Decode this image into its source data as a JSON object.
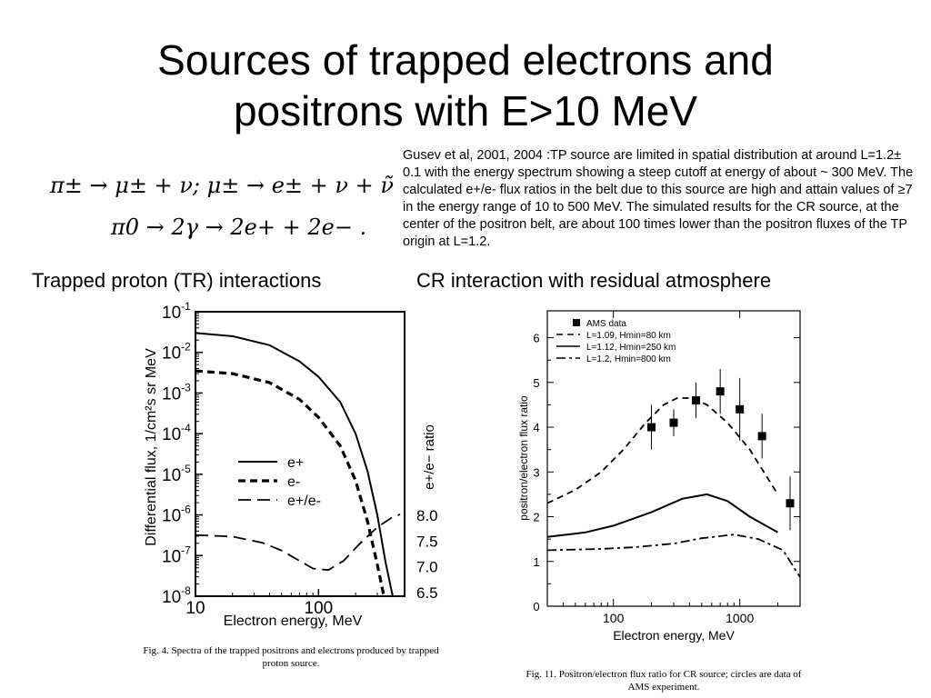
{
  "slide": {
    "title_line1": "Sources of trapped electrons and",
    "title_line2": "positrons with  E>10 MeV",
    "equation_1": "π± → μ± + ν;  μ± → e± + ν + ν̃",
    "equation_2": "π0 → 2γ → 2e+ + 2e− .",
    "description": "Gusev et al, 2001, 2004 :TP source are limited in spatial distribution at around L=1.2± 0.1 with the energy spectrum showing a steep cutoff at energy of about ~ 300 MeV. The calculated e+/e- flux ratios in the belt due to this source are high and attain values of ≥7 in the energy range of 10 to 500 MeV. The simulated results for the CR source, at the center of the positron belt, are about 100 times lower than the positron fluxes of the TP origin at L=1.2.",
    "left_heading": "Trapped proton  (TR) interactions",
    "right_heading": "CR interaction with residual  atmosphere"
  },
  "chart_data": [
    {
      "type": "line",
      "ylabel": "Differential flux, 1/cm²s sr MeV",
      "xlabel": "Electron energy, MeV",
      "y2label": "e+/e− ratio",
      "xscale": "log",
      "yscale": "log",
      "xlim": [
        10,
        500
      ],
      "ylim": [
        1e-08,
        0.1
      ],
      "x_ticks": [
        "10",
        "100"
      ],
      "y_ticks": [
        "10-8",
        "10-7",
        "10-6",
        "10-5",
        "10-4",
        "10-3",
        "10-2",
        "10-1"
      ],
      "y2_ticks": [
        "6.5",
        "7.0",
        "7.5",
        "8.0"
      ],
      "legend_position": "center-right",
      "series": [
        {
          "name": "e+",
          "axis": "left",
          "style": "solid",
          "points": [
            [
              10,
              0.03
            ],
            [
              20,
              0.025
            ],
            [
              40,
              0.015
            ],
            [
              70,
              0.006
            ],
            [
              100,
              0.0025
            ],
            [
              150,
              0.0006
            ],
            [
              200,
              0.0001
            ],
            [
              250,
              1.2e-05
            ],
            [
              300,
              1e-06
            ],
            [
              350,
              7e-08
            ],
            [
              400,
              1e-08
            ]
          ]
        },
        {
          "name": "e-",
          "axis": "left",
          "style": "dashed-bold",
          "points": [
            [
              10,
              0.0035
            ],
            [
              20,
              0.003
            ],
            [
              40,
              0.0018
            ],
            [
              70,
              0.0007
            ],
            [
              100,
              0.00025
            ],
            [
              150,
              5e-05
            ],
            [
              200,
              7e-06
            ],
            [
              250,
              7e-07
            ],
            [
              300,
              6e-08
            ],
            [
              340,
              1e-08
            ]
          ]
        },
        {
          "name": "e+/e-",
          "axis": "right",
          "style": "long-dashed",
          "points": [
            [
              10,
              7.6
            ],
            [
              20,
              7.57
            ],
            [
              35,
              7.45
            ],
            [
              50,
              7.3
            ],
            [
              70,
              7.1
            ],
            [
              90,
              6.95
            ],
            [
              120,
              6.92
            ],
            [
              160,
              7.1
            ],
            [
              220,
              7.45
            ],
            [
              300,
              7.75
            ],
            [
              400,
              7.95
            ],
            [
              460,
              8.0
            ]
          ]
        }
      ],
      "caption": "Fig. 4. Spectra of the trapped positrons and electrons produced by trapped proton source."
    },
    {
      "type": "line",
      "xlabel": "Electron energy, MeV",
      "ylabel": "positron/electron flux ratio",
      "xscale": "log",
      "xlim": [
        30,
        3000
      ],
      "ylim": [
        0,
        6.6
      ],
      "x_ticks": [
        "100",
        "1000"
      ],
      "y_ticks": [
        "0",
        "1",
        "2",
        "3",
        "4",
        "5",
        "6"
      ],
      "legend_position": "top-left",
      "series": [
        {
          "name": "AMS data",
          "style": "markers",
          "points": [
            [
              200,
              4.0,
              0.5
            ],
            [
              300,
              4.1,
              0.3
            ],
            [
              450,
              4.6,
              0.4
            ],
            [
              700,
              4.8,
              0.5
            ],
            [
              1000,
              4.4,
              0.7
            ],
            [
              1500,
              3.8,
              0.5
            ],
            [
              2500,
              2.3,
              0.6
            ]
          ]
        },
        {
          "name": "L=1.09, Hmin=80 km",
          "style": "dashed",
          "points": [
            [
              30,
              2.3
            ],
            [
              50,
              2.6
            ],
            [
              80,
              3.0
            ],
            [
              120,
              3.5
            ],
            [
              180,
              4.1
            ],
            [
              250,
              4.5
            ],
            [
              320,
              4.65
            ],
            [
              420,
              4.65
            ],
            [
              550,
              4.5
            ],
            [
              800,
              4.1
            ],
            [
              1200,
              3.5
            ],
            [
              2000,
              2.5
            ]
          ]
        },
        {
          "name": "L=1.12, Hmin=250 km",
          "style": "solid",
          "points": [
            [
              30,
              1.55
            ],
            [
              60,
              1.65
            ],
            [
              100,
              1.8
            ],
            [
              200,
              2.1
            ],
            [
              350,
              2.4
            ],
            [
              550,
              2.5
            ],
            [
              800,
              2.35
            ],
            [
              1200,
              2.0
            ],
            [
              2000,
              1.65
            ]
          ]
        },
        {
          "name": "L=1.2, Hmin=800 km",
          "style": "dash-dot",
          "points": [
            [
              30,
              1.25
            ],
            [
              80,
              1.28
            ],
            [
              150,
              1.32
            ],
            [
              300,
              1.4
            ],
            [
              500,
              1.52
            ],
            [
              900,
              1.6
            ],
            [
              1400,
              1.5
            ],
            [
              2200,
              1.25
            ],
            [
              3000,
              0.65
            ]
          ]
        }
      ],
      "caption": "Fig. 11. Positron/electron flux ratio for CR source; circles are data of AMS experiment."
    }
  ]
}
